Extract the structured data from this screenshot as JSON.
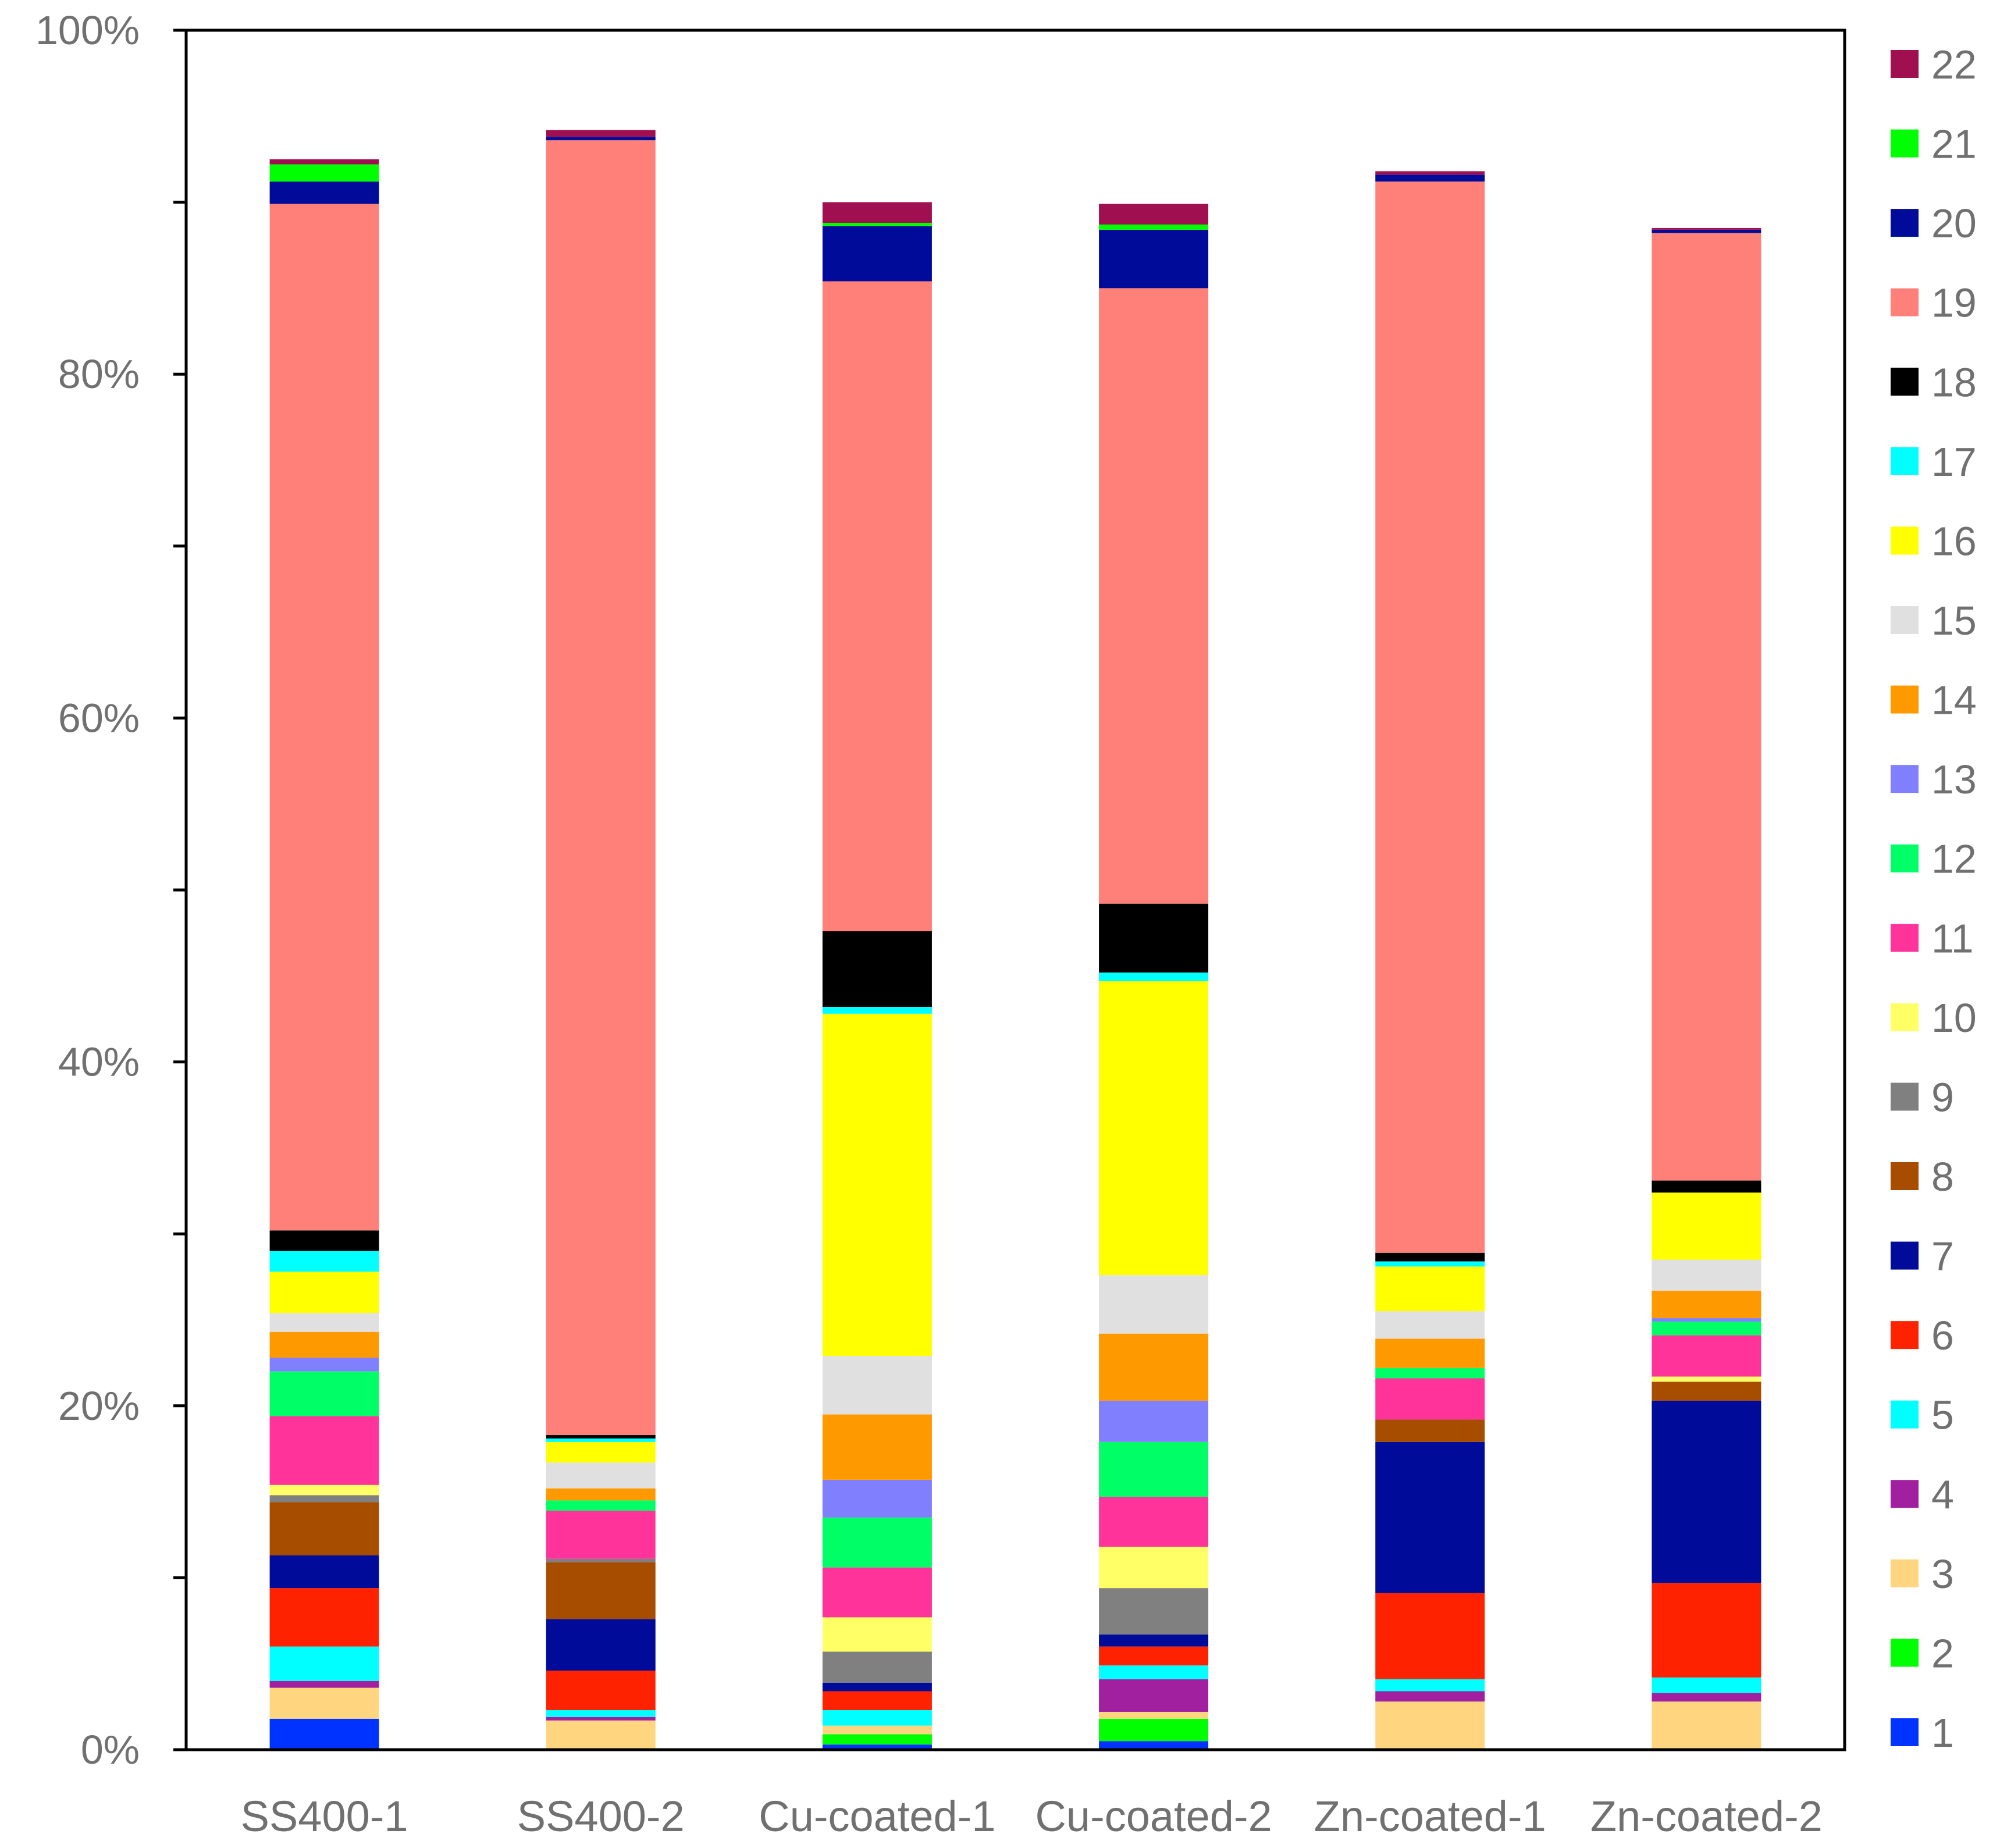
{
  "chart_data": {
    "type": "bar",
    "stacked": true,
    "title": "",
    "xlabel": "",
    "ylabel": "",
    "ylim": [
      0,
      100
    ],
    "y_ticks": [
      "0%",
      "20%",
      "40%",
      "60%",
      "80%",
      "100%"
    ],
    "grid": false,
    "legend_position": "right",
    "categories": [
      "SS400-1",
      "SS400-2",
      "Cu-coated-1",
      "Cu-coated-2",
      "Zn-coated-1",
      "Zn-coated-2"
    ],
    "series": [
      {
        "name": "1",
        "color": "#0033ff",
        "values": [
          1.8,
          0.0,
          0.3,
          0.5,
          0.0,
          0.0
        ]
      },
      {
        "name": "2",
        "color": "#00ff00",
        "values": [
          0.0,
          0.0,
          0.6,
          1.3,
          0.0,
          0.0
        ]
      },
      {
        "name": "3",
        "color": "#ffd580",
        "values": [
          1.8,
          1.7,
          0.5,
          0.4,
          2.8,
          2.8
        ]
      },
      {
        "name": "4",
        "color": "#a020a0",
        "values": [
          0.4,
          0.2,
          0.0,
          1.9,
          0.6,
          0.5
        ]
      },
      {
        "name": "5",
        "color": "#00ffff",
        "values": [
          2.0,
          0.4,
          0.9,
          0.8,
          0.7,
          0.9
        ]
      },
      {
        "name": "6",
        "color": "#ff2200",
        "values": [
          3.4,
          2.3,
          1.1,
          1.1,
          5.0,
          5.5
        ]
      },
      {
        "name": "7",
        "color": "#000c99",
        "values": [
          1.9,
          3.0,
          0.5,
          0.7,
          8.8,
          10.6
        ]
      },
      {
        "name": "8",
        "color": "#a64d00",
        "values": [
          3.1,
          3.3,
          0.0,
          0.0,
          1.3,
          1.1
        ]
      },
      {
        "name": "9",
        "color": "#808080",
        "values": [
          0.4,
          0.2,
          1.8,
          2.7,
          0.0,
          0.0
        ]
      },
      {
        "name": "10",
        "color": "#ffff66",
        "values": [
          0.6,
          0.0,
          2.0,
          2.4,
          0.0,
          0.3
        ]
      },
      {
        "name": "11",
        "color": "#ff3399",
        "values": [
          4.0,
          2.8,
          2.9,
          2.9,
          2.4,
          2.4
        ]
      },
      {
        "name": "12",
        "color": "#00ff66",
        "values": [
          2.6,
          0.6,
          2.9,
          3.2,
          0.6,
          0.8
        ]
      },
      {
        "name": "13",
        "color": "#8080ff",
        "values": [
          0.8,
          0.0,
          2.2,
          2.4,
          0.0,
          0.2
        ]
      },
      {
        "name": "14",
        "color": "#ff9900",
        "values": [
          1.5,
          0.7,
          3.8,
          3.9,
          1.7,
          1.6
        ]
      },
      {
        "name": "15",
        "color": "#e0e0e0",
        "values": [
          1.1,
          1.5,
          3.4,
          3.4,
          1.6,
          1.8
        ]
      },
      {
        "name": "16",
        "color": "#ffff00",
        "values": [
          2.4,
          1.2,
          19.9,
          17.1,
          2.6,
          3.9
        ]
      },
      {
        "name": "17",
        "color": "#00ffff",
        "values": [
          1.2,
          0.2,
          0.4,
          0.5,
          0.3,
          0.0
        ]
      },
      {
        "name": "18",
        "color": "#000000",
        "values": [
          1.2,
          0.2,
          4.4,
          4.0,
          0.5,
          0.7
        ]
      },
      {
        "name": "19",
        "color": "#ff8078",
        "values": [
          59.7,
          75.3,
          37.8,
          35.8,
          62.3,
          55.1
        ]
      },
      {
        "name": "20",
        "color": "#000c99",
        "values": [
          1.3,
          0.2,
          3.2,
          3.4,
          0.4,
          0.2
        ]
      },
      {
        "name": "21",
        "color": "#00ff00",
        "values": [
          1.0,
          0.0,
          0.2,
          0.3,
          0.0,
          0.0
        ]
      },
      {
        "name": "22",
        "color": "#a01050",
        "values": [
          0.3,
          0.4,
          1.2,
          1.2,
          0.2,
          0.1
        ]
      }
    ]
  }
}
